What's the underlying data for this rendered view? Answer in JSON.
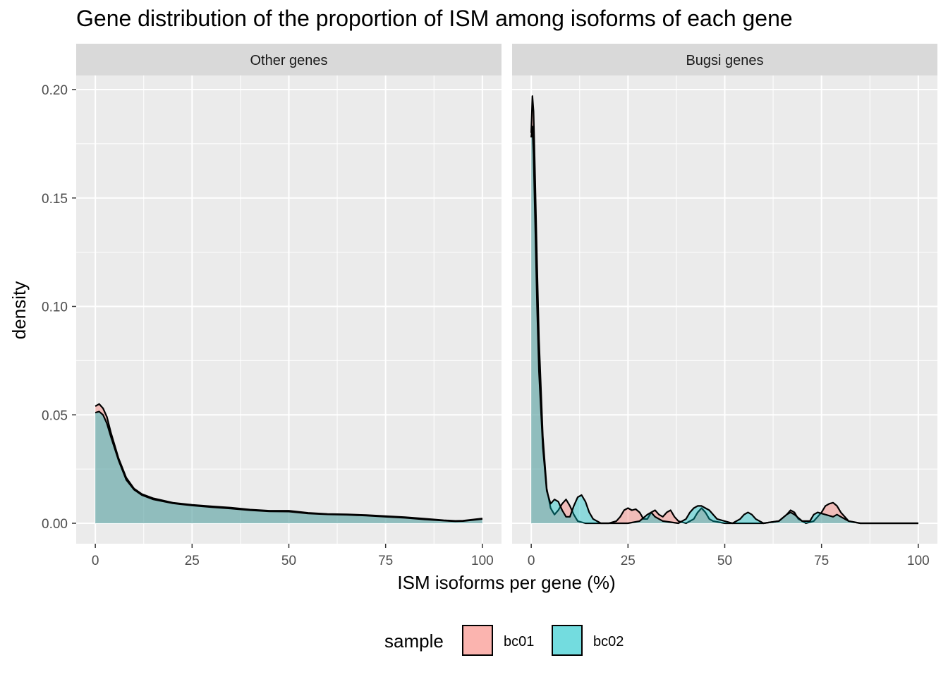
{
  "chart_data": {
    "type": "area",
    "title": "Gene distribution of the proportion of ISM among isoforms of each gene",
    "xlabel": "ISM isoforms per gene (%)",
    "ylabel": "density",
    "xlim": [
      0,
      100
    ],
    "ylim": [
      0,
      0.2
    ],
    "x_ticks": [
      "0",
      "25",
      "50",
      "75",
      "100"
    ],
    "y_ticks": [
      "0.00",
      "0.05",
      "0.10",
      "0.15",
      "0.20"
    ],
    "grid": true,
    "legend": {
      "title": "sample",
      "position": "bottom",
      "entries": [
        {
          "name": "bc01",
          "color": "#F8766D"
        },
        {
          "name": "bc02",
          "color": "#00BFC4"
        }
      ]
    },
    "panels": [
      {
        "label": "Other genes",
        "series": [
          {
            "name": "bc01",
            "x": [
              0,
              1,
              2,
              3,
              4,
              6,
              8,
              10,
              12,
              15,
              20,
              25,
              30,
              35,
              40,
              45,
              50,
              55,
              60,
              65,
              70,
              75,
              80,
              85,
              90,
              93,
              95,
              98,
              100
            ],
            "y": [
              0.054,
              0.055,
              0.053,
              0.049,
              0.042,
              0.03,
              0.021,
              0.016,
              0.0135,
              0.0115,
              0.0095,
              0.0085,
              0.0078,
              0.0072,
              0.0063,
              0.0058,
              0.0058,
              0.0048,
              0.0043,
              0.0041,
              0.0038,
              0.0033,
              0.0028,
              0.0021,
              0.0014,
              0.0011,
              0.0012,
              0.0018,
              0.0022
            ]
          },
          {
            "name": "bc02",
            "x": [
              0,
              1,
              2,
              3,
              4,
              6,
              8,
              10,
              12,
              15,
              20,
              25,
              30,
              35,
              40,
              45,
              50,
              55,
              60,
              65,
              70,
              75,
              80,
              85,
              90,
              93,
              95,
              98,
              100
            ],
            "y": [
              0.051,
              0.0515,
              0.05,
              0.046,
              0.04,
              0.029,
              0.02,
              0.0155,
              0.013,
              0.011,
              0.0092,
              0.0082,
              0.0074,
              0.0068,
              0.006,
              0.0055,
              0.0054,
              0.0045,
              0.0041,
              0.0039,
              0.0035,
              0.003,
              0.0025,
              0.0018,
              0.0012,
              0.0009,
              0.001,
              0.0016,
              0.002
            ]
          }
        ]
      },
      {
        "label": "Bugsi genes",
        "series": [
          {
            "name": "bc01",
            "x": [
              0,
              0.3,
              0.6,
              1,
              1.5,
              2,
              3,
              4,
              5,
              6,
              7,
              8,
              9,
              10,
              11,
              12,
              14,
              16,
              18,
              20,
              22,
              23,
              24,
              25,
              26,
              27,
              28,
              29,
              30,
              31,
              32,
              33,
              34,
              35,
              36,
              37,
              38,
              40,
              42,
              43,
              44,
              45,
              46,
              47,
              50,
              55,
              60,
              64,
              66,
              67,
              68,
              69,
              71,
              73,
              74,
              75,
              76,
              77,
              78,
              79,
              80,
              82,
              85,
              90,
              100
            ],
            "y": [
              0.18,
              0.197,
              0.19,
              0.16,
              0.12,
              0.085,
              0.04,
              0.016,
              0.007,
              0.004,
              0.006,
              0.009,
              0.011,
              0.008,
              0.004,
              0.001,
              0.0,
              0.0,
              0.0,
              0.0,
              0.001,
              0.003,
              0.006,
              0.007,
              0.006,
              0.0065,
              0.005,
              0.002,
              0.002,
              0.005,
              0.006,
              0.004,
              0.003,
              0.005,
              0.006,
              0.003,
              0.001,
              0.0,
              0.002,
              0.005,
              0.007,
              0.005,
              0.002,
              0.001,
              0.0,
              0.0,
              0.0,
              0.001,
              0.004,
              0.006,
              0.005,
              0.002,
              0.0,
              0.001,
              0.003,
              0.005,
              0.008,
              0.009,
              0.0095,
              0.008,
              0.005,
              0.001,
              0.0,
              0.0,
              0.0
            ]
          },
          {
            "name": "bc02",
            "x": [
              0,
              0.3,
              0.6,
              1,
              1.5,
              2,
              3,
              4,
              5,
              6,
              7,
              8,
              9,
              10,
              11,
              12,
              13,
              14,
              15,
              16,
              18,
              20,
              25,
              28,
              30,
              31,
              32,
              34,
              38,
              40,
              41,
              42,
              43,
              44,
              45,
              46,
              48,
              52,
              54,
              55,
              56,
              57,
              58,
              60,
              64,
              66,
              67,
              68,
              70,
              72,
              73,
              74,
              76,
              78,
              79,
              80,
              82,
              85,
              90,
              100
            ],
            "y": [
              0.178,
              0.183,
              0.17,
              0.14,
              0.1,
              0.07,
              0.035,
              0.015,
              0.009,
              0.011,
              0.01,
              0.006,
              0.003,
              0.003,
              0.008,
              0.012,
              0.013,
              0.01,
              0.005,
              0.002,
              0.0,
              0.0,
              0.0,
              0.001,
              0.004,
              0.005,
              0.003,
              0.001,
              0.0,
              0.002,
              0.005,
              0.007,
              0.008,
              0.008,
              0.007,
              0.006,
              0.002,
              0.0,
              0.002,
              0.004,
              0.005,
              0.004,
              0.002,
              0.0,
              0.001,
              0.004,
              0.005,
              0.004,
              0.001,
              0.001,
              0.004,
              0.005,
              0.004,
              0.003,
              0.004,
              0.003,
              0.001,
              0.0,
              0.0,
              0.0
            ]
          }
        ]
      }
    ]
  }
}
